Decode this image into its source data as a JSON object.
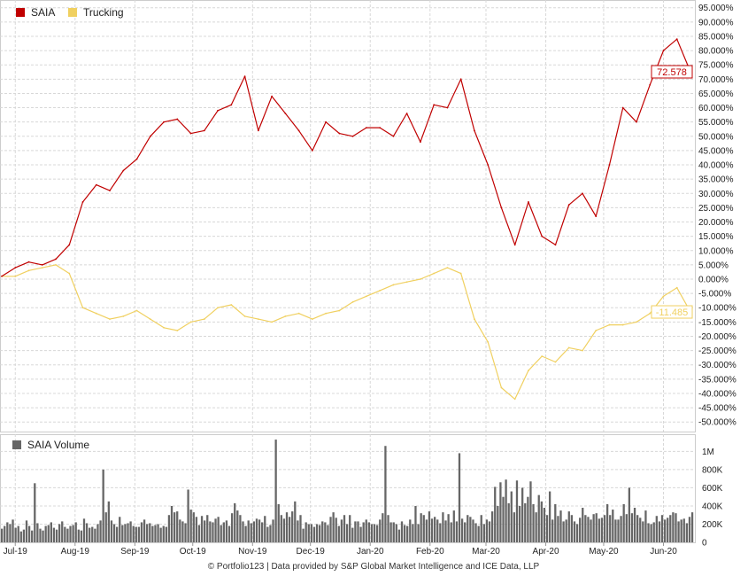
{
  "footer": "© Portfolio123 | Data provided by S&P Global Market Intelligence and ICE Data, LLP",
  "colors": {
    "saia": "#c00000",
    "trucking": "#f0d060",
    "volume": "#666666",
    "grid": "#d8d8d8",
    "border": "#cccccc"
  },
  "chart_data": [
    {
      "type": "line",
      "title": "",
      "xlabel": "",
      "ylabel": "",
      "ylim": [
        -0.52,
        0.95
      ],
      "y_format": "percent",
      "grid": true,
      "legend_position": "top-left",
      "x_ticks": [
        "Jul-19",
        "Aug-19",
        "Sep-19",
        "Oct-19",
        "Nov-19",
        "Dec-19",
        "Jan-20",
        "Feb-20",
        "Mar-20",
        "Apr-20",
        "May-20",
        "Jun-20"
      ],
      "y_ticks": [
        "95.000%",
        "90.000%",
        "85.000%",
        "80.000%",
        "75.000%",
        "70.000%",
        "65.000%",
        "60.000%",
        "55.000%",
        "50.000%",
        "45.000%",
        "40.000%",
        "35.000%",
        "30.000%",
        "25.000%",
        "20.000%",
        "15.000%",
        "10.000%",
        "5.000%",
        "0.000%",
        "-5.000%",
        "-10.000%",
        "-15.000%",
        "-20.000%",
        "-25.000%",
        "-30.000%",
        "-35.000%",
        "-40.000%",
        "-45.000%",
        "-50.000%"
      ],
      "x_dates": [
        "2019-06-24",
        "2019-07-01",
        "2019-07-08",
        "2019-07-15",
        "2019-07-22",
        "2019-07-29",
        "2019-08-05",
        "2019-08-12",
        "2019-08-19",
        "2019-08-26",
        "2019-09-02",
        "2019-09-09",
        "2019-09-16",
        "2019-09-23",
        "2019-09-30",
        "2019-10-07",
        "2019-10-14",
        "2019-10-21",
        "2019-10-28",
        "2019-11-04",
        "2019-11-11",
        "2019-11-18",
        "2019-11-25",
        "2019-12-02",
        "2019-12-09",
        "2019-12-16",
        "2019-12-23",
        "2019-12-30",
        "2020-01-06",
        "2020-01-13",
        "2020-01-20",
        "2020-01-27",
        "2020-02-03",
        "2020-02-10",
        "2020-02-17",
        "2020-02-24",
        "2020-03-02",
        "2020-03-09",
        "2020-03-16",
        "2020-03-23",
        "2020-03-30",
        "2020-04-06",
        "2020-04-13",
        "2020-04-20",
        "2020-04-27",
        "2020-05-04",
        "2020-05-11",
        "2020-05-18",
        "2020-05-25",
        "2020-06-01",
        "2020-06-08",
        "2020-06-15"
      ],
      "series": [
        {
          "name": "SAIA",
          "color": "#c00000",
          "values": [
            0.01,
            0.04,
            0.06,
            0.05,
            0.07,
            0.12,
            0.27,
            0.33,
            0.31,
            0.38,
            0.42,
            0.5,
            0.55,
            0.56,
            0.51,
            0.52,
            0.59,
            0.61,
            0.71,
            0.52,
            0.64,
            0.58,
            0.52,
            0.45,
            0.55,
            0.51,
            0.5,
            0.53,
            0.53,
            0.5,
            0.58,
            0.48,
            0.61,
            0.6,
            0.7,
            0.52,
            0.4,
            0.25,
            0.12,
            0.27,
            0.15,
            0.12,
            0.26,
            0.3,
            0.22,
            0.4,
            0.6,
            0.55,
            0.68,
            0.8,
            0.84,
            0.72578
          ]
        },
        {
          "name": "Trucking",
          "color": "#f0d060",
          "values": [
            0.01,
            0.01,
            0.03,
            0.04,
            0.05,
            0.02,
            -0.1,
            -0.12,
            -0.14,
            -0.13,
            -0.11,
            -0.14,
            -0.17,
            -0.18,
            -0.15,
            -0.14,
            -0.1,
            -0.09,
            -0.13,
            -0.14,
            -0.15,
            -0.13,
            -0.12,
            -0.14,
            -0.12,
            -0.11,
            -0.08,
            -0.06,
            -0.04,
            -0.02,
            -0.01,
            0.0,
            0.02,
            0.04,
            0.02,
            -0.14,
            -0.22,
            -0.38,
            -0.42,
            -0.32,
            -0.27,
            -0.29,
            -0.24,
            -0.25,
            -0.18,
            -0.16,
            -0.16,
            -0.15,
            -0.12,
            -0.06,
            -0.03,
            -0.11485
          ]
        }
      ],
      "end_labels": [
        "72.578",
        "-11.485"
      ]
    },
    {
      "type": "bar",
      "title": "SAIA Volume",
      "xlabel": "",
      "ylabel": "",
      "ylim": [
        0,
        1150000
      ],
      "grid": true,
      "y_ticks": [
        "1M",
        "800K",
        "600K",
        "400K",
        "200K",
        "0"
      ],
      "y_tick_values": [
        1000000,
        800000,
        600000,
        400000,
        200000,
        0
      ],
      "series": [
        {
          "name": "SAIA Volume",
          "color": "#666666",
          "values": [
            150000,
            180000,
            220000,
            200000,
            250000,
            160000,
            180000,
            120000,
            140000,
            240000,
            180000,
            130000,
            650000,
            210000,
            150000,
            130000,
            180000,
            190000,
            220000,
            160000,
            140000,
            200000,
            230000,
            170000,
            150000,
            180000,
            190000,
            220000,
            140000,
            130000,
            260000,
            210000,
            160000,
            170000,
            150000,
            200000,
            240000,
            800000,
            330000,
            450000,
            240000,
            200000,
            170000,
            280000,
            190000,
            200000,
            210000,
            230000,
            180000,
            170000,
            170000,
            220000,
            250000,
            200000,
            210000,
            180000,
            190000,
            200000,
            160000,
            180000,
            170000,
            300000,
            400000,
            330000,
            340000,
            250000,
            230000,
            210000,
            580000,
            360000,
            330000,
            280000,
            190000,
            290000,
            240000,
            300000,
            230000,
            220000,
            260000,
            280000,
            190000,
            220000,
            240000,
            180000,
            320000,
            430000,
            350000,
            300000,
            230000,
            180000,
            240000,
            210000,
            230000,
            260000,
            250000,
            220000,
            290000,
            170000,
            190000,
            250000,
            1130000,
            420000,
            300000,
            260000,
            330000,
            280000,
            340000,
            450000,
            240000,
            300000,
            150000,
            220000,
            200000,
            200000,
            170000,
            200000,
            190000,
            230000,
            220000,
            190000,
            280000,
            330000,
            270000,
            180000,
            250000,
            300000,
            200000,
            300000,
            160000,
            230000,
            230000,
            170000,
            220000,
            250000,
            220000,
            200000,
            200000,
            190000,
            250000,
            320000,
            1060000,
            300000,
            220000,
            220000,
            200000,
            140000,
            230000,
            190000,
            180000,
            250000,
            200000,
            400000,
            200000,
            320000,
            300000,
            250000,
            340000,
            260000,
            280000,
            250000,
            210000,
            330000,
            240000,
            310000,
            220000,
            350000,
            230000,
            980000,
            260000,
            220000,
            300000,
            280000,
            250000,
            210000,
            180000,
            300000,
            200000,
            250000,
            230000,
            340000,
            610000,
            400000,
            660000,
            500000,
            690000,
            430000,
            560000,
            330000,
            680000,
            400000,
            600000,
            430000,
            500000,
            670000,
            420000,
            330000,
            520000,
            450000,
            380000,
            300000,
            560000,
            250000,
            420000,
            290000,
            350000,
            230000,
            250000,
            340000,
            300000,
            230000,
            200000,
            270000,
            380000,
            300000,
            280000,
            250000,
            310000,
            320000,
            260000,
            270000,
            300000,
            420000,
            300000,
            360000,
            250000,
            250000,
            290000,
            420000,
            310000,
            600000,
            320000,
            380000,
            300000,
            270000,
            230000,
            350000,
            210000,
            200000,
            220000,
            290000,
            230000,
            300000,
            250000,
            270000,
            300000,
            330000,
            320000,
            230000,
            250000,
            260000,
            210000,
            280000,
            330000
          ]
        }
      ]
    }
  ]
}
